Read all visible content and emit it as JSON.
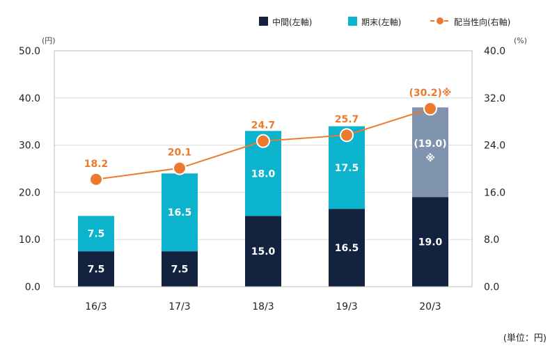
{
  "chart_data": {
    "type": "bar",
    "stacked": true,
    "categories": [
      "16/3",
      "17/3",
      "18/3",
      "19/3",
      "20/3"
    ],
    "series": [
      {
        "name": "中間(左軸)",
        "axis": "left",
        "values": [
          7.5,
          7.5,
          15.0,
          16.5,
          19.0
        ],
        "labels": [
          "7.5",
          "7.5",
          "15.0",
          "16.5",
          "19.0"
        ],
        "color": "#12223f"
      },
      {
        "name": "期末(左軸)",
        "axis": "left",
        "values": [
          7.5,
          16.5,
          18.0,
          17.5,
          19.0
        ],
        "labels": [
          "7.5",
          "16.5",
          "18.0",
          "17.5",
          "(19.0)"
        ],
        "color": "#0cb3cd",
        "forecast_color": "#7f93ae"
      },
      {
        "name": "配当性向(右軸)",
        "axis": "right",
        "type": "line",
        "values": [
          18.2,
          20.1,
          24.7,
          25.7,
          30.2
        ],
        "labels": [
          "18.2",
          "20.1",
          "24.7",
          "25.7",
          "(30.2)※"
        ],
        "color": "#ec7a2e"
      }
    ],
    "forecast_mark": "※",
    "y_left": {
      "min": 0,
      "max": 50,
      "ticks": [
        "0.0",
        "10.0",
        "20.0",
        "30.0",
        "40.0",
        "50.0"
      ],
      "unit": "(円)"
    },
    "y_right": {
      "min": 0,
      "max": 40,
      "ticks": [
        "0.0",
        "8.0",
        "16.0",
        "24.0",
        "32.0",
        "40.0"
      ],
      "unit": "(%)"
    },
    "legend_position": "top-right",
    "footnote": "(単位：円)"
  }
}
